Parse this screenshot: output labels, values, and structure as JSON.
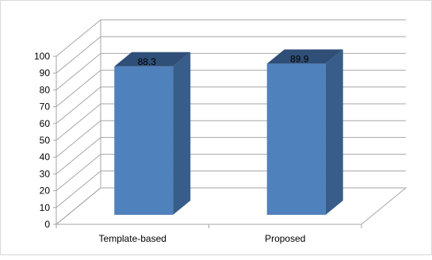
{
  "chart_data": {
    "type": "bar",
    "style": "3d-column",
    "categories": [
      "Template-based",
      "Proposed"
    ],
    "values": [
      88.3,
      89.9
    ],
    "data_labels": [
      "88.3",
      "89.9"
    ],
    "ylim": [
      0,
      100
    ],
    "yticks": [
      "0",
      "10",
      "20",
      "30",
      "40",
      "50",
      "60",
      "70",
      "80",
      "90",
      "100"
    ],
    "title": "",
    "xlabel": "",
    "ylabel": "",
    "grid": true,
    "legend": "none",
    "colors": {
      "bar_front": "#4f81bd",
      "bar_side": "#385d8a",
      "bar_top": "#2f4f78",
      "gridline": "#a6a6a6",
      "frame_border": "#d9d9d9"
    }
  }
}
